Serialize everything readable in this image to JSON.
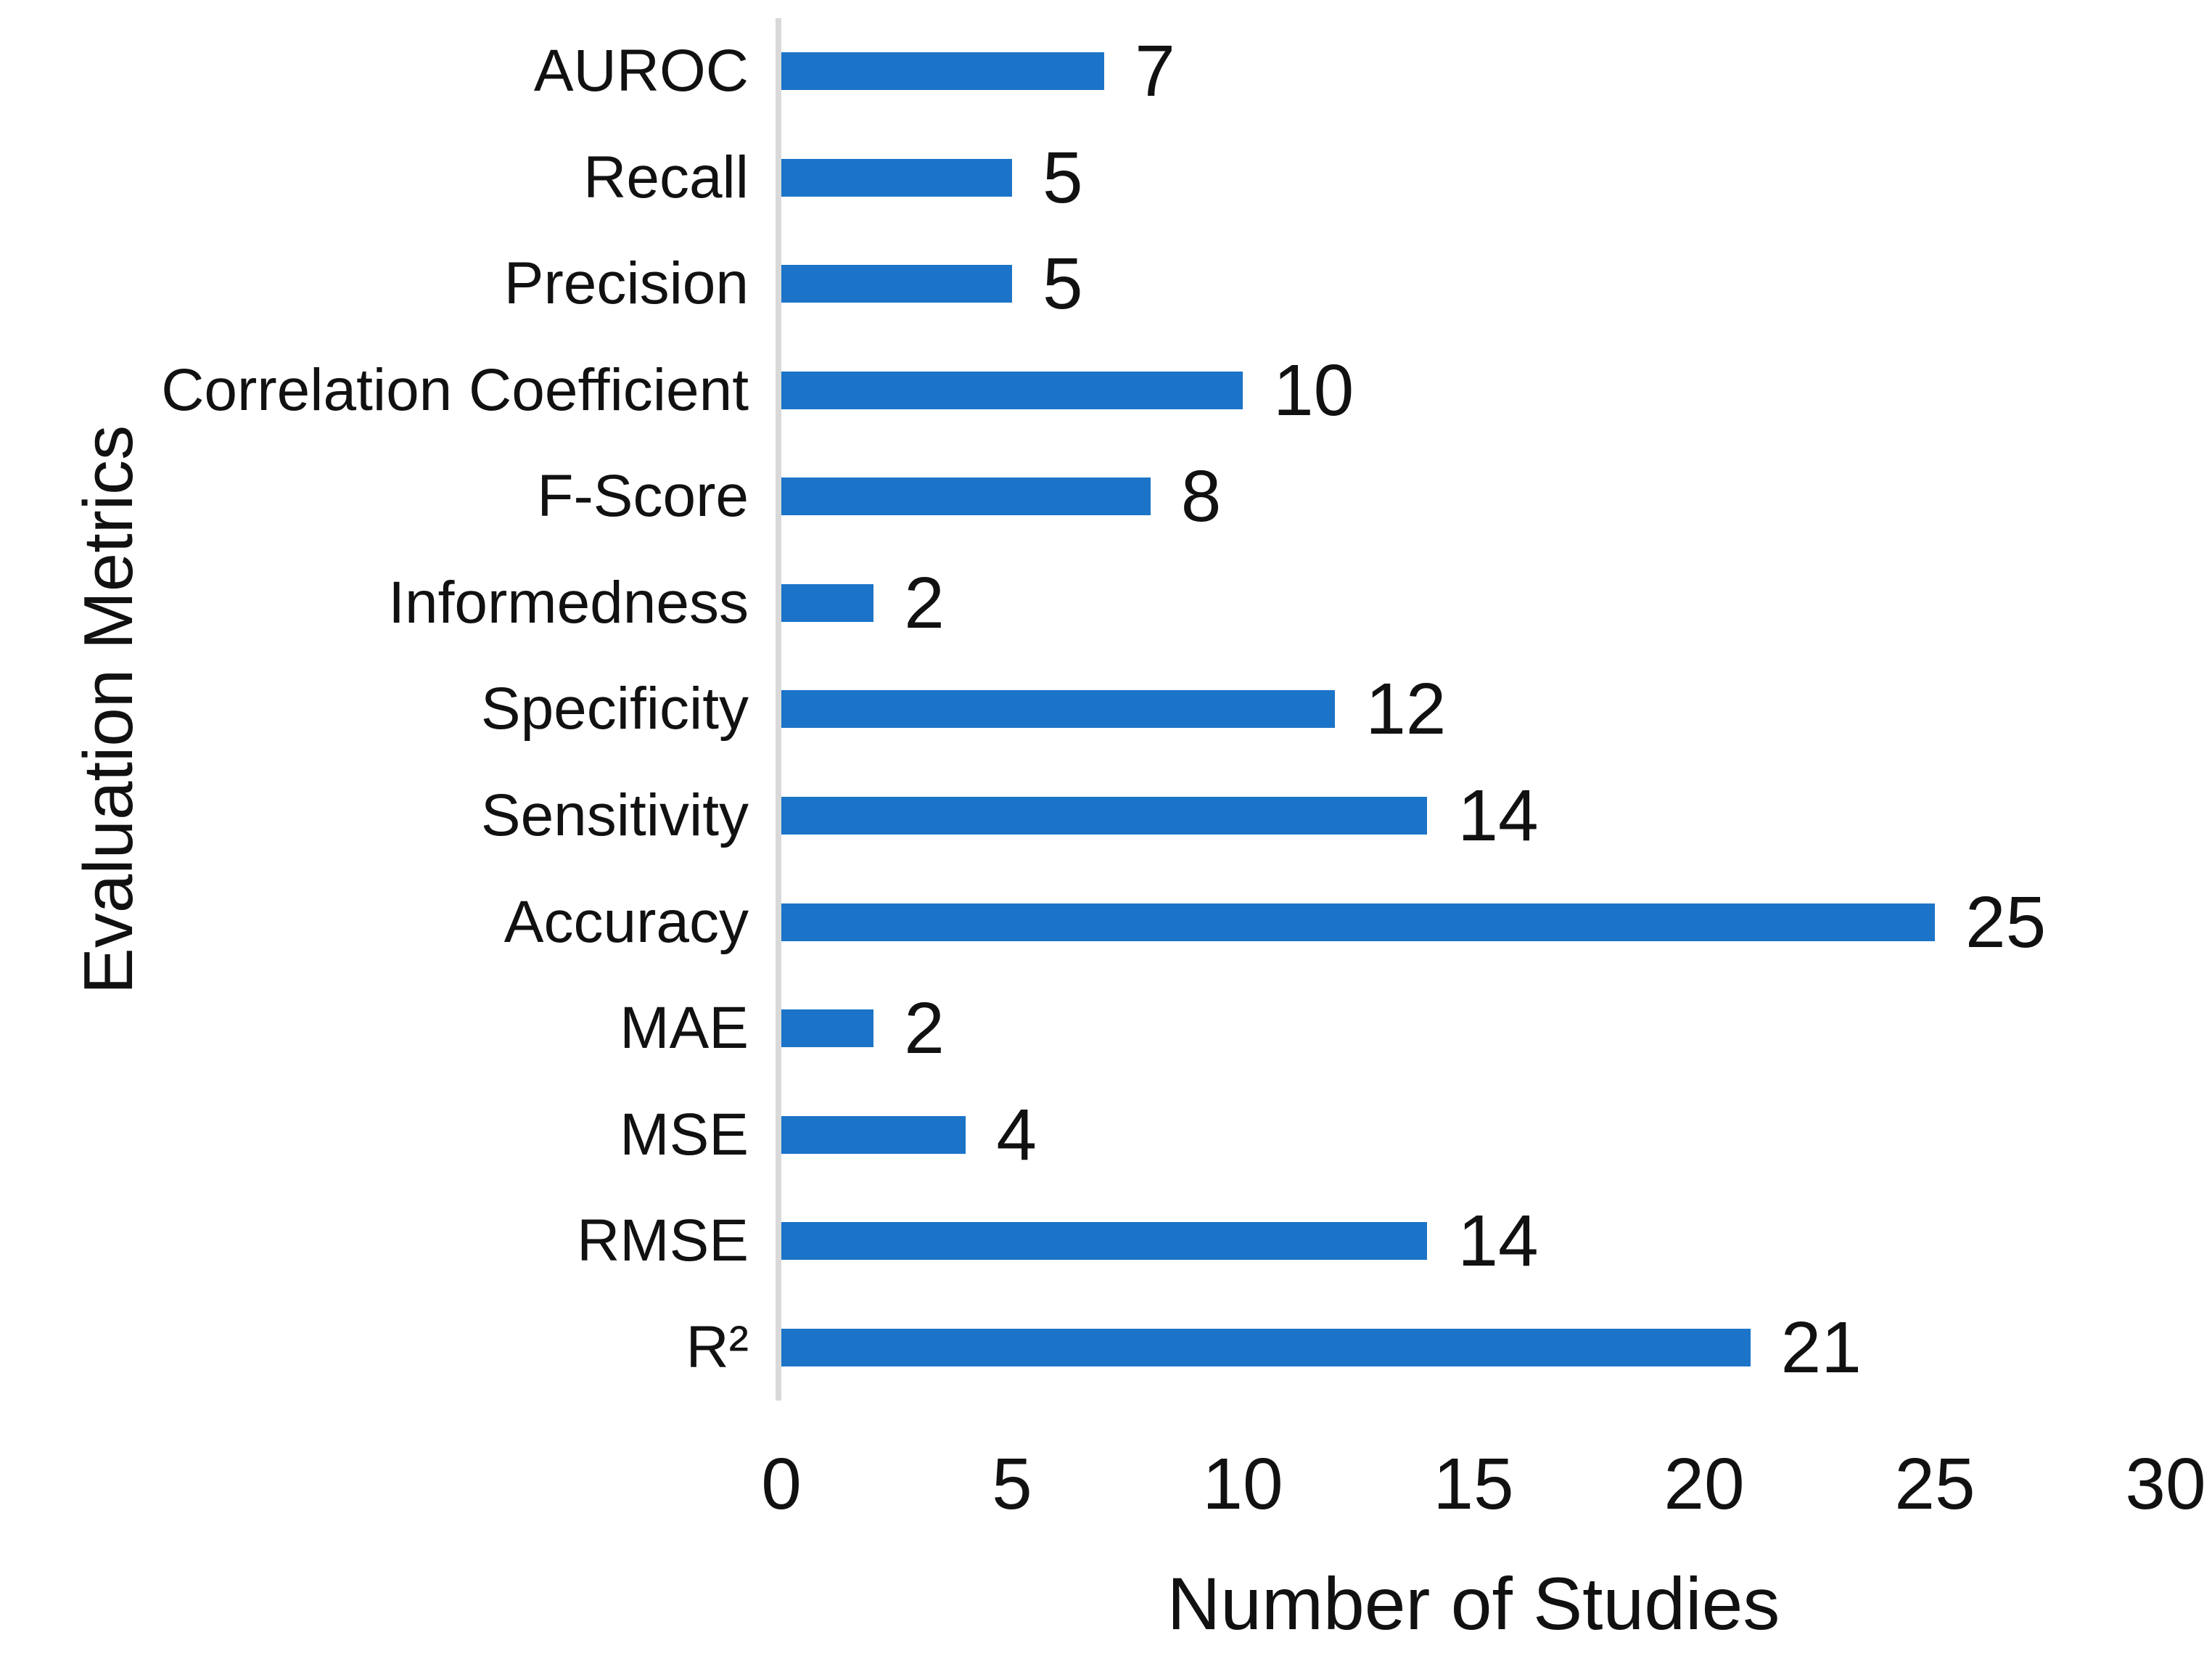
{
  "chart_data": {
    "type": "bar",
    "orientation": "horizontal",
    "title": "",
    "xlabel": "Number of Studies",
    "ylabel": "Evaluation Metrics",
    "categories": [
      "AUROC",
      "Recall",
      "Precision",
      "Correlation Coefficient",
      "F-Score",
      "Informedness",
      "Specificity",
      "Sensitivity",
      "Accuracy",
      "MAE",
      "MSE",
      "RMSE",
      "R²"
    ],
    "values": [
      7,
      5,
      5,
      10,
      8,
      2,
      12,
      14,
      25,
      2,
      4,
      14,
      21
    ],
    "xlim": [
      0,
      30
    ],
    "xticks": [
      0,
      5,
      10,
      15,
      20,
      25,
      30
    ],
    "grid": false,
    "legend": "none",
    "value_labels_shown": true,
    "colors": {
      "bar": "#1b74c7",
      "axis_line": "#d9d9d9",
      "text": "#111111",
      "background": "#ffffff"
    }
  }
}
